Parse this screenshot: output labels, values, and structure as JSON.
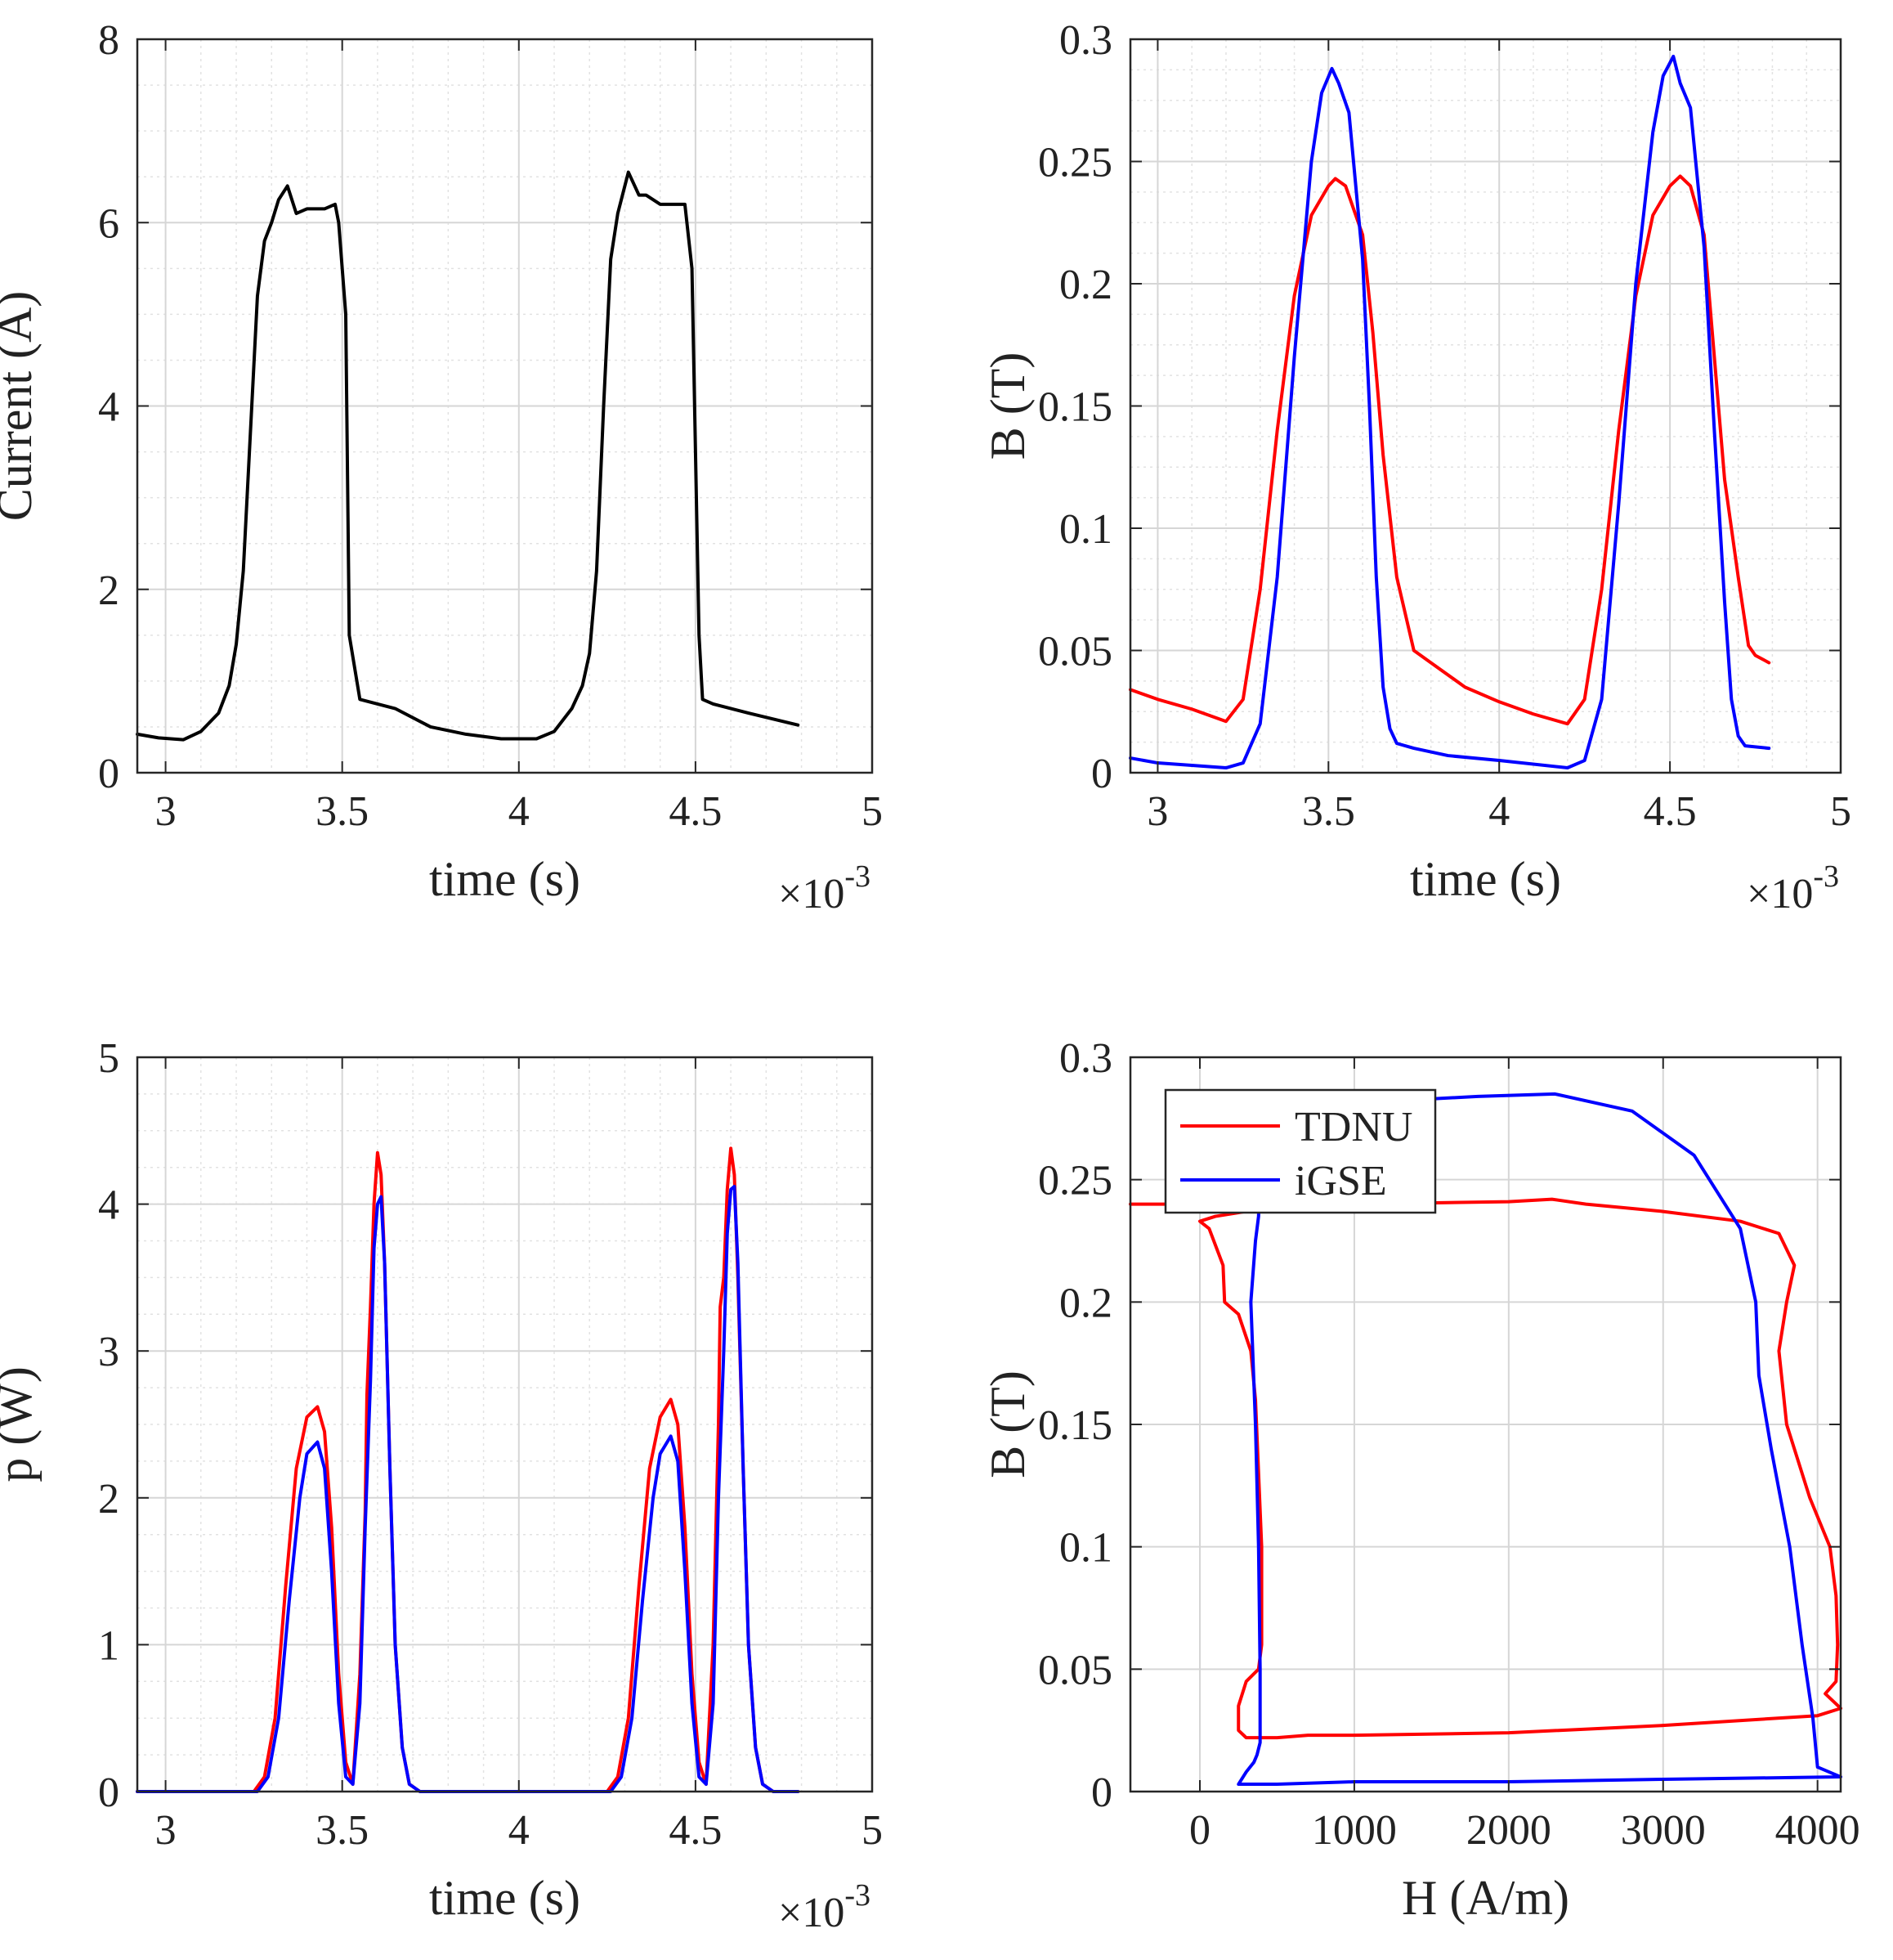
{
  "chart_data": [
    {
      "type": "line",
      "xlabel": "time (s)",
      "ylabel": "Current (A)",
      "x_exponent": "×10",
      "x_exponent_power": "-3",
      "xlim": [
        2.92,
        5.0
      ],
      "ylim": [
        0,
        8
      ],
      "grid": true,
      "minor_grid": true,
      "xticks": [
        3,
        3.5,
        4,
        4.5,
        5
      ],
      "xtick_labels": [
        "3",
        "3.5",
        "4",
        "4.5",
        "5"
      ],
      "yticks": [
        0,
        2,
        4,
        6,
        8
      ],
      "ytick_labels": [
        "0",
        "2",
        "4",
        "6",
        "8"
      ],
      "series": [
        {
          "name": "Current",
          "color": "#000000",
          "x": [
            2.92,
            2.98,
            3.05,
            3.1,
            3.15,
            3.18,
            3.2,
            3.22,
            3.24,
            3.26,
            3.28,
            3.3,
            3.32,
            3.345,
            3.37,
            3.4,
            3.45,
            3.48,
            3.49,
            3.51,
            3.52,
            3.55,
            3.65,
            3.75,
            3.85,
            3.95,
            4.05,
            4.1,
            4.15,
            4.18,
            4.2,
            4.22,
            4.24,
            4.26,
            4.28,
            4.31,
            4.34,
            4.36,
            4.4,
            4.47,
            4.49,
            4.51,
            4.52,
            4.55,
            4.65,
            4.79
          ],
          "y": [
            0.42,
            0.38,
            0.36,
            0.45,
            0.65,
            0.95,
            1.4,
            2.2,
            3.7,
            5.2,
            5.8,
            6.0,
            6.25,
            6.4,
            6.1,
            6.15,
            6.15,
            6.2,
            6.0,
            5.0,
            1.5,
            0.8,
            0.7,
            0.5,
            0.42,
            0.37,
            0.37,
            0.45,
            0.7,
            0.95,
            1.3,
            2.2,
            4.0,
            5.6,
            6.1,
            6.55,
            6.3,
            6.3,
            6.2,
            6.2,
            5.5,
            1.5,
            0.8,
            0.75,
            0.65,
            0.52
          ]
        }
      ]
    },
    {
      "type": "line",
      "xlabel": "time (s)",
      "ylabel": "B (T)",
      "x_exponent": "×10",
      "x_exponent_power": "-3",
      "xlim": [
        2.92,
        5.0
      ],
      "ylim": [
        0,
        0.3
      ],
      "grid": true,
      "minor_grid": true,
      "xticks": [
        3,
        3.5,
        4,
        4.5,
        5
      ],
      "xtick_labels": [
        "3",
        "3.5",
        "4",
        "4.5",
        "5"
      ],
      "yticks": [
        0,
        0.05,
        0.1,
        0.15,
        0.2,
        0.25,
        0.3
      ],
      "ytick_labels": [
        "0",
        "0.05",
        "0.1",
        "0.15",
        "0.2",
        "0.25",
        "0.3"
      ],
      "series": [
        {
          "name": "TDNU",
          "color": "#ff0000",
          "x": [
            2.92,
            3.0,
            3.1,
            3.2,
            3.25,
            3.3,
            3.35,
            3.4,
            3.45,
            3.5,
            3.52,
            3.55,
            3.6,
            3.63,
            3.66,
            3.7,
            3.75,
            3.8,
            3.9,
            4.0,
            4.1,
            4.2,
            4.25,
            4.3,
            4.35,
            4.4,
            4.45,
            4.5,
            4.53,
            4.56,
            4.6,
            4.63,
            4.66,
            4.7,
            4.73,
            4.75,
            4.79
          ],
          "y": [
            0.034,
            0.03,
            0.026,
            0.021,
            0.03,
            0.075,
            0.14,
            0.195,
            0.228,
            0.24,
            0.243,
            0.24,
            0.22,
            0.18,
            0.13,
            0.08,
            0.05,
            0.045,
            0.035,
            0.029,
            0.024,
            0.02,
            0.03,
            0.075,
            0.14,
            0.195,
            0.228,
            0.24,
            0.244,
            0.24,
            0.22,
            0.17,
            0.12,
            0.08,
            0.052,
            0.048,
            0.045
          ]
        },
        {
          "name": "iGSE",
          "color": "#0000ff",
          "x": [
            2.92,
            3.0,
            3.1,
            3.2,
            3.25,
            3.3,
            3.35,
            3.4,
            3.45,
            3.48,
            3.51,
            3.53,
            3.56,
            3.6,
            3.62,
            3.64,
            3.66,
            3.68,
            3.7,
            3.75,
            3.85,
            4.0,
            4.2,
            4.25,
            4.3,
            4.35,
            4.4,
            4.45,
            4.48,
            4.51,
            4.53,
            4.56,
            4.6,
            4.63,
            4.66,
            4.68,
            4.7,
            4.72,
            4.79
          ],
          "y": [
            0.006,
            0.004,
            0.003,
            0.002,
            0.004,
            0.02,
            0.08,
            0.17,
            0.25,
            0.278,
            0.288,
            0.282,
            0.27,
            0.21,
            0.15,
            0.08,
            0.035,
            0.018,
            0.012,
            0.01,
            0.007,
            0.005,
            0.002,
            0.005,
            0.03,
            0.11,
            0.2,
            0.262,
            0.285,
            0.293,
            0.282,
            0.272,
            0.215,
            0.14,
            0.07,
            0.03,
            0.015,
            0.011,
            0.01
          ]
        }
      ]
    },
    {
      "type": "line",
      "xlabel": "time (s)",
      "ylabel": "p (W)",
      "x_exponent": "×10",
      "x_exponent_power": "-3",
      "xlim": [
        2.92,
        5.0
      ],
      "ylim": [
        0,
        5
      ],
      "grid": true,
      "minor_grid": true,
      "xticks": [
        3,
        3.5,
        4,
        4.5,
        5
      ],
      "xtick_labels": [
        "3",
        "3.5",
        "4",
        "4.5",
        "5"
      ],
      "yticks": [
        0,
        1,
        2,
        3,
        4,
        5
      ],
      "ytick_labels": [
        "0",
        "1",
        "2",
        "3",
        "4",
        "5"
      ],
      "series": [
        {
          "name": "TDNU",
          "color": "#ff0000",
          "x": [
            2.92,
            3.25,
            3.28,
            3.31,
            3.34,
            3.37,
            3.4,
            3.43,
            3.45,
            3.47,
            3.49,
            3.51,
            3.53,
            3.55,
            3.565,
            3.57,
            3.58,
            3.59,
            3.6,
            3.61,
            3.62,
            3.635,
            3.65,
            3.67,
            3.69,
            3.72,
            4.25,
            4.28,
            4.31,
            4.34,
            4.37,
            4.4,
            4.43,
            4.45,
            4.47,
            4.49,
            4.51,
            4.53,
            4.55,
            4.565,
            4.57,
            4.58,
            4.59,
            4.6,
            4.61,
            4.62,
            4.635,
            4.65,
            4.67,
            4.69,
            4.72,
            4.79
          ],
          "y": [
            0,
            0,
            0.1,
            0.5,
            1.4,
            2.2,
            2.55,
            2.62,
            2.45,
            1.8,
            0.8,
            0.2,
            0.05,
            0.8,
            1.9,
            2.7,
            3.3,
            4.0,
            4.35,
            4.2,
            3.6,
            2.2,
            1.0,
            0.3,
            0.05,
            0,
            0,
            0.1,
            0.5,
            1.4,
            2.2,
            2.55,
            2.67,
            2.5,
            1.8,
            0.8,
            0.2,
            0.05,
            1.0,
            2.5,
            3.3,
            3.5,
            4.1,
            4.38,
            4.2,
            3.5,
            2.2,
            1.0,
            0.3,
            0.05,
            0,
            0
          ]
        },
        {
          "name": "iGSE",
          "color": "#0000ff",
          "x": [
            2.92,
            3.26,
            3.29,
            3.32,
            3.35,
            3.38,
            3.4,
            3.43,
            3.45,
            3.47,
            3.49,
            3.51,
            3.53,
            3.55,
            3.565,
            3.58,
            3.59,
            3.6,
            3.61,
            3.62,
            3.635,
            3.65,
            3.67,
            3.69,
            3.72,
            4.26,
            4.29,
            4.32,
            4.35,
            4.38,
            4.4,
            4.43,
            4.45,
            4.47,
            4.49,
            4.51,
            4.53,
            4.55,
            4.565,
            4.58,
            4.59,
            4.6,
            4.61,
            4.62,
            4.635,
            4.65,
            4.67,
            4.69,
            4.72,
            4.79
          ],
          "y": [
            0,
            0,
            0.1,
            0.5,
            1.3,
            2.0,
            2.3,
            2.38,
            2.2,
            1.5,
            0.6,
            0.1,
            0.05,
            0.6,
            1.8,
            2.8,
            3.7,
            4.0,
            4.05,
            3.6,
            2.2,
            1.0,
            0.3,
            0.05,
            0,
            0,
            0.1,
            0.5,
            1.3,
            2.0,
            2.3,
            2.42,
            2.25,
            1.5,
            0.6,
            0.1,
            0.05,
            0.6,
            2.0,
            3.0,
            3.8,
            4.1,
            4.12,
            3.6,
            2.2,
            1.0,
            0.3,
            0.05,
            0,
            0
          ]
        }
      ]
    },
    {
      "type": "line",
      "xlabel": "H (A/m)",
      "ylabel": "B (T)",
      "xlim": [
        -450,
        4150
      ],
      "ylim": [
        0,
        0.3
      ],
      "grid": true,
      "minor_grid": false,
      "xticks": [
        0,
        1000,
        2000,
        3000,
        4000
      ],
      "xtick_labels": [
        "0",
        "1000",
        "2000",
        "3000",
        "4000"
      ],
      "yticks": [
        0,
        0.05,
        0.1,
        0.15,
        0.2,
        0.25,
        0.3
      ],
      "ytick_labels": [
        "0",
        "0.05",
        "0.1",
        "0.15",
        "0.2",
        "0.25",
        "0.3"
      ],
      "legend": {
        "position": "top-left",
        "entries": [
          {
            "label": "TDNU",
            "color": "#ff0000"
          },
          {
            "label": "iGSE",
            "color": "#0000ff"
          }
        ]
      },
      "series": [
        {
          "name": "TDNU",
          "color": "#ff0000",
          "x": [
            -450,
            0,
            500,
            1000,
            2000,
            2280,
            2500,
            3000,
            3500,
            3750,
            3850,
            3800,
            3750,
            3800,
            3950,
            4080,
            4120,
            4130,
            4120,
            4050,
            4150,
            4000,
            3000,
            2000,
            1000,
            700,
            500,
            300,
            250,
            250,
            300,
            380,
            400,
            400,
            360,
            330,
            250,
            160,
            150,
            60,
            0,
            100,
            200,
            300,
            400
          ],
          "y": [
            0.24,
            0.24,
            0.24,
            0.24,
            0.241,
            0.242,
            0.24,
            0.237,
            0.233,
            0.228,
            0.215,
            0.2,
            0.18,
            0.15,
            0.12,
            0.1,
            0.08,
            0.06,
            0.045,
            0.04,
            0.034,
            0.031,
            0.027,
            0.024,
            0.023,
            0.023,
            0.022,
            0.022,
            0.025,
            0.035,
            0.045,
            0.05,
            0.06,
            0.1,
            0.16,
            0.18,
            0.195,
            0.2,
            0.215,
            0.23,
            0.233,
            0.235,
            0.236,
            0.237,
            0.237
          ]
        },
        {
          "name": "iGSE",
          "color": "#0000ff",
          "x": [
            380,
            400,
            700,
            1200,
            1800,
            2300,
            2800,
            3200,
            3500,
            3600,
            3620,
            3700,
            3820,
            3900,
            3970,
            4000,
            4150,
            3000,
            2000,
            1000,
            500,
            250,
            300,
            350,
            370,
            390,
            390,
            380,
            360,
            330,
            360,
            380
          ],
          "y": [
            0.235,
            0.275,
            0.28,
            0.282,
            0.284,
            0.285,
            0.278,
            0.26,
            0.23,
            0.2,
            0.17,
            0.14,
            0.1,
            0.06,
            0.03,
            0.01,
            0.006,
            0.005,
            0.004,
            0.004,
            0.003,
            0.003,
            0.008,
            0.012,
            0.015,
            0.02,
            0.05,
            0.1,
            0.15,
            0.2,
            0.225,
            0.235
          ]
        }
      ]
    }
  ]
}
